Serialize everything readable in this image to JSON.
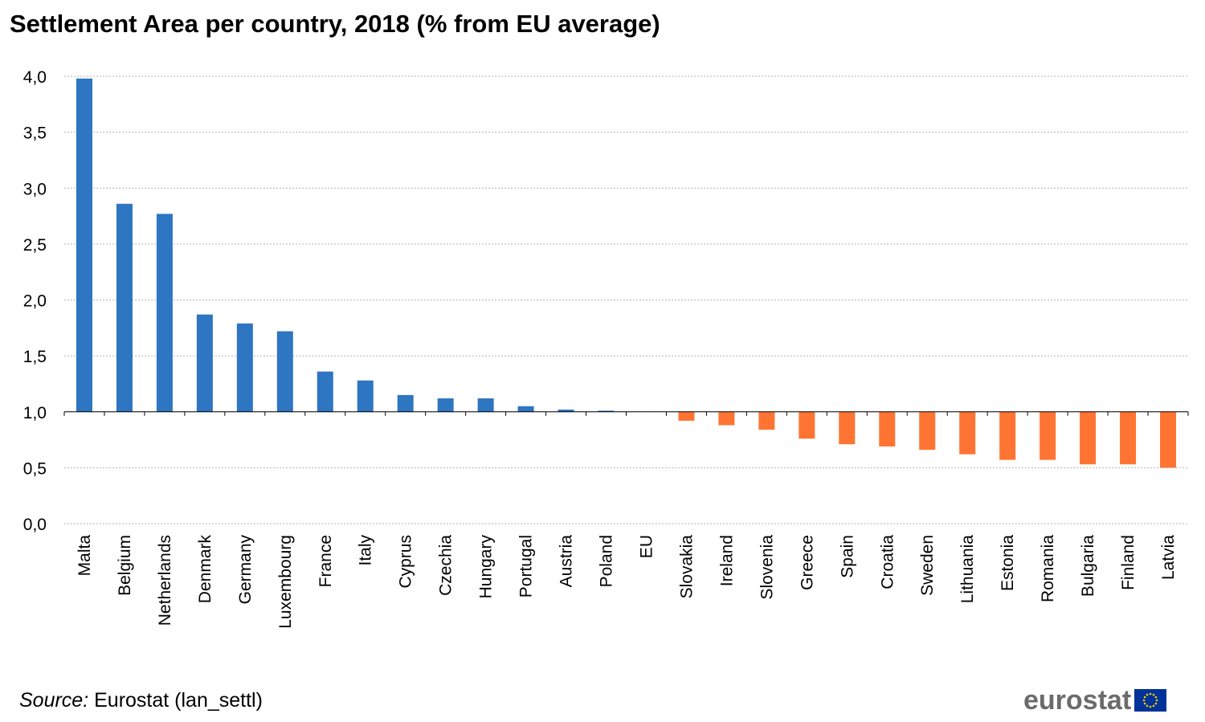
{
  "title": "Settlement Area per country, 2018 (% from EU average)",
  "source": {
    "label": "Source:",
    "text": " Eurostat (lan_settl)"
  },
  "logo": {
    "text": "eurostat",
    "flag_icon": "eu-flag-icon"
  },
  "colors": {
    "above": "#2e75c2",
    "below": "#ff7433",
    "grid": "#b4b4b4",
    "axis": "#000000"
  },
  "chart_data": {
    "type": "bar",
    "baseline": 1.0,
    "ylim": [
      0.0,
      4.0
    ],
    "yticks": [
      "0,0",
      "0,5",
      "1,0",
      "1,5",
      "2,0",
      "2,5",
      "3,0",
      "3,5",
      "4,0"
    ],
    "ytick_values": [
      0.0,
      0.5,
      1.0,
      1.5,
      2.0,
      2.5,
      3.0,
      3.5,
      4.0
    ],
    "grid": true,
    "categories": [
      "Malta",
      "Belgium",
      "Netherlands",
      "Denmark",
      "Germany",
      "Luxembourg",
      "France",
      "Italy",
      "Cyprus",
      "Czechia",
      "Hungary",
      "Portugal",
      "Austria",
      "Poland",
      "EU",
      "Slovakia",
      "Ireland",
      "Slovenia",
      "Greece",
      "Spain",
      "Croatia",
      "Sweden",
      "Lithuania",
      "Estonia",
      "Romania",
      "Bulgaria",
      "Finland",
      "Latvia"
    ],
    "values": [
      3.98,
      2.86,
      2.77,
      1.87,
      1.79,
      1.72,
      1.36,
      1.28,
      1.15,
      1.12,
      1.12,
      1.05,
      1.02,
      1.01,
      1.0,
      0.92,
      0.88,
      0.84,
      0.76,
      0.71,
      0.69,
      0.66,
      0.62,
      0.57,
      0.57,
      0.53,
      0.53,
      0.5
    ]
  }
}
